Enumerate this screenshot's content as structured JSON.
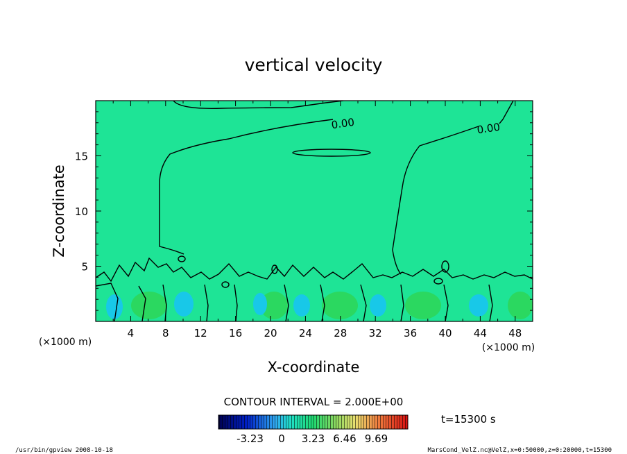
{
  "chart_data": {
    "type": "contour",
    "title": "vertical velocity",
    "xlabel": "X-coordinate",
    "ylabel": "Z-coordinate",
    "x_unit_left": "(×1000 m)",
    "x_unit_right": "(×1000 m)",
    "xlim": [
      0,
      50
    ],
    "ylim": [
      0,
      20
    ],
    "x_ticks": [
      4,
      8,
      12,
      16,
      20,
      24,
      28,
      32,
      36,
      40,
      44,
      48
    ],
    "y_ticks": [
      5,
      10,
      15
    ],
    "contour_labels": [
      "0.00",
      "0.00"
    ],
    "contour_interval_text": "CONTOUR INTERVAL = 2.000E+00",
    "colorbar_ticks": [
      "-3.23",
      "0",
      "3.23",
      "6.46",
      "9.69"
    ],
    "colorbar_range": [
      -6.46,
      12.92
    ],
    "time_text": "t=15300 s",
    "footer_left": "/usr/bin/gpview  2008-10-18",
    "footer_right": "MarsCond_VelZ.nc@VelZ,x=0:50000,z=0:20000,t=15300",
    "colors": {
      "background": "#1ee496",
      "updraft": "#2bd860",
      "downdraft": "#18c8e8",
      "line": "#000000"
    }
  }
}
